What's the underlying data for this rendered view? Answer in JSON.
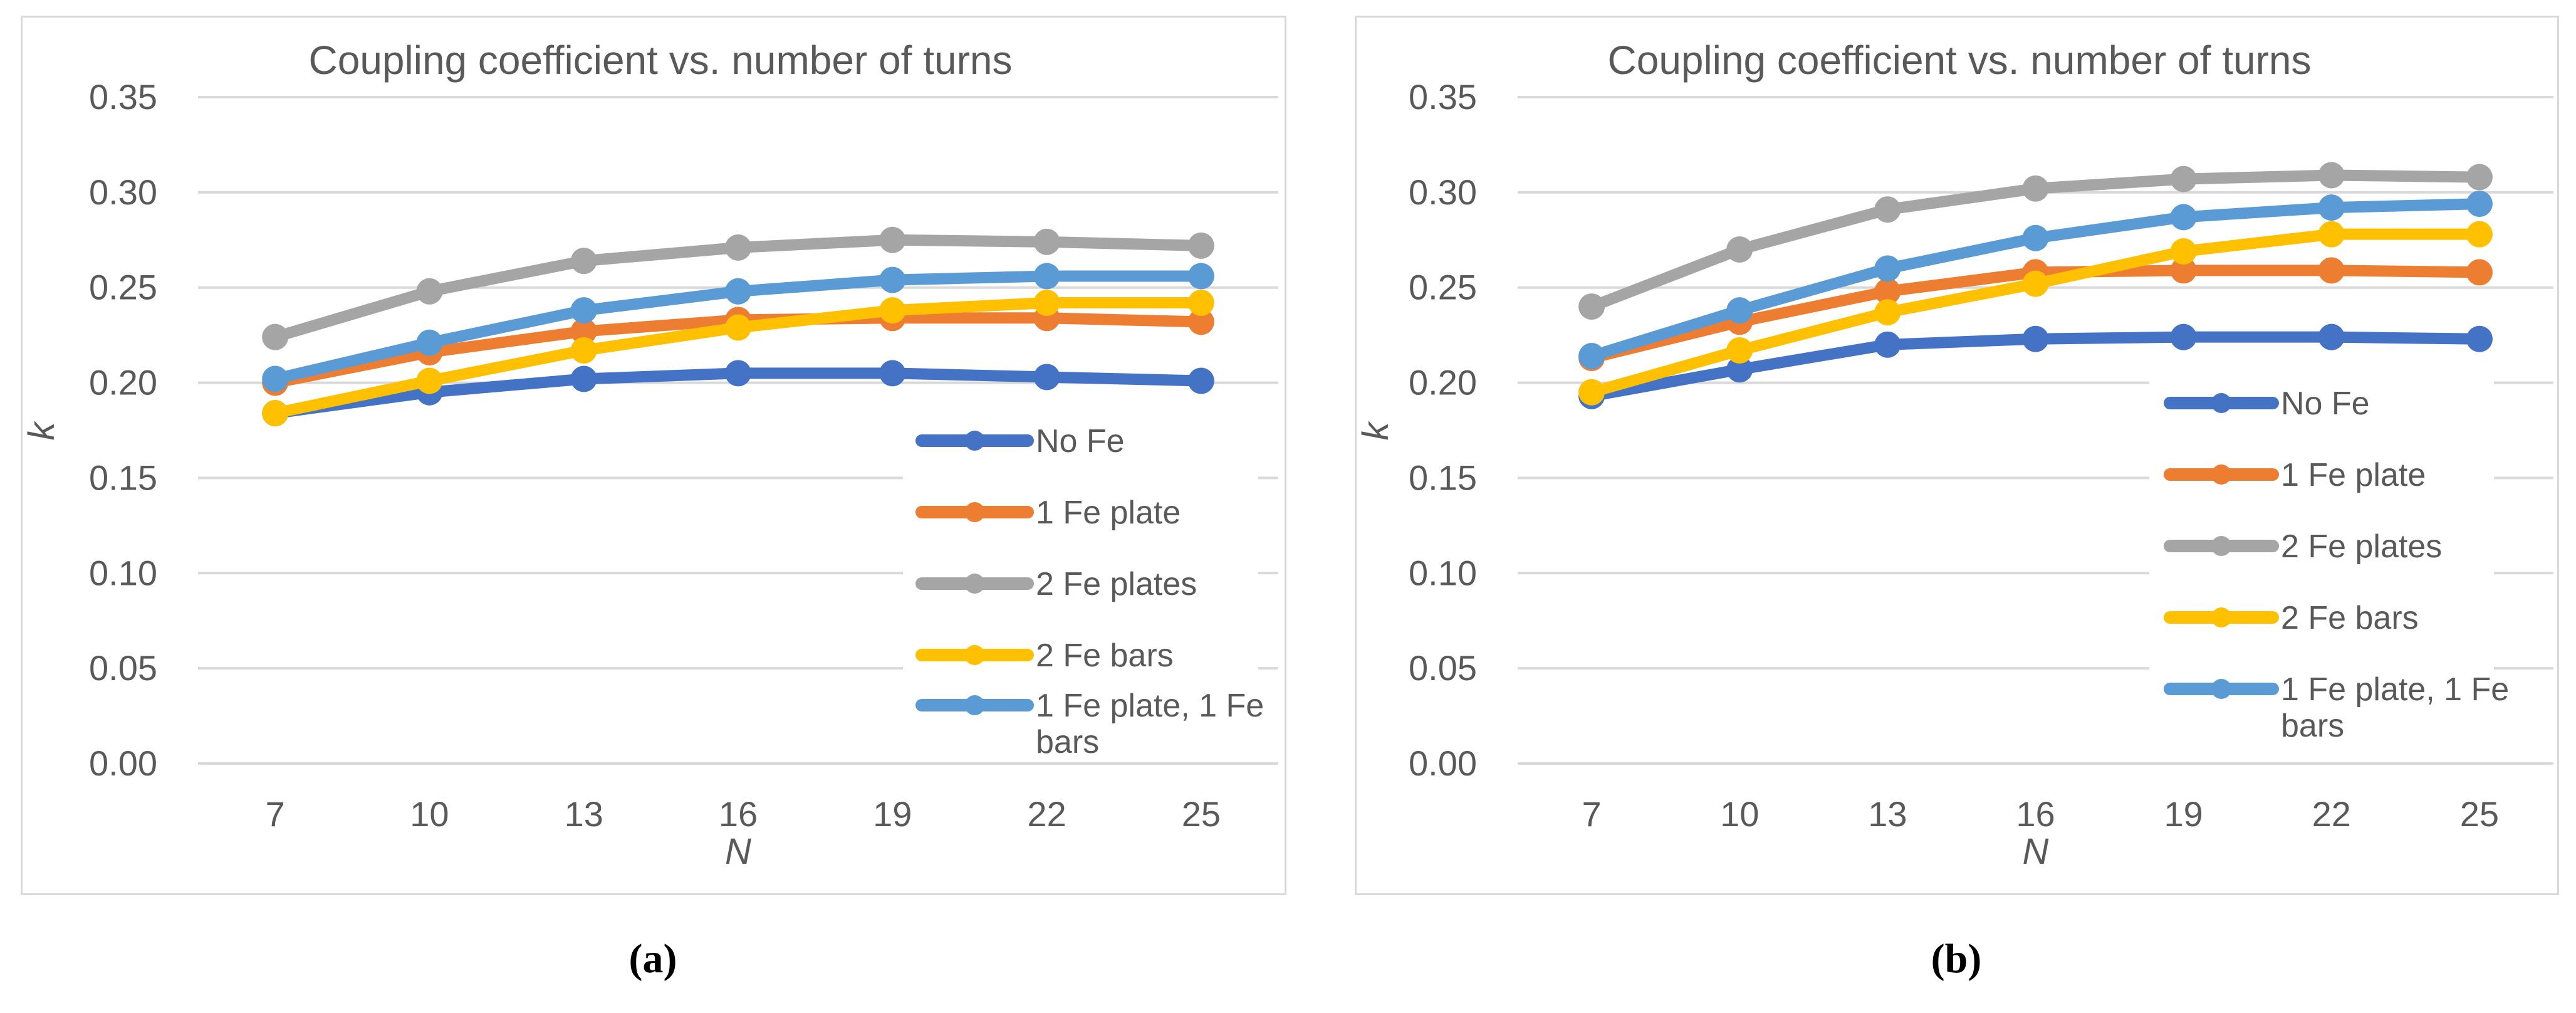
{
  "colors": {
    "background": "#FFFFFF",
    "panel_border": "#D9D9D9",
    "gridline": "#D9D9D9",
    "axis_text": "#595959",
    "caption_text": "#000000"
  },
  "chart_data": [
    {
      "type": "line",
      "title": "Coupling coefficient vs. number of turns",
      "xlabel": "N",
      "ylabel": "k",
      "caption": "(a)",
      "categories": [
        7,
        10,
        13,
        16,
        19,
        22,
        25
      ],
      "ylim": [
        0,
        0.35
      ],
      "ytick_step": 0.05,
      "ytick_labels": [
        "0.00",
        "0.05",
        "0.10",
        "0.15",
        "0.20",
        "0.25",
        "0.30",
        "0.35"
      ],
      "grid": true,
      "legend_position": "inside lower right",
      "series": [
        {
          "name": "No Fe",
          "color": "#4472C4",
          "values": [
            0.184,
            0.195,
            0.202,
            0.205,
            0.205,
            0.203,
            0.201
          ]
        },
        {
          "name": "1 Fe plate",
          "color": "#ED7D31",
          "values": [
            0.2,
            0.216,
            0.227,
            0.233,
            0.234,
            0.234,
            0.232
          ]
        },
        {
          "name": "2 Fe plates",
          "color": "#A5A5A5",
          "values": [
            0.224,
            0.248,
            0.264,
            0.271,
            0.275,
            0.274,
            0.272
          ]
        },
        {
          "name": "2 Fe bars",
          "color": "#FFC000",
          "values": [
            0.184,
            0.201,
            0.217,
            0.229,
            0.238,
            0.242,
            0.242
          ]
        },
        {
          "name": "1 Fe plate, 1 Fe bars",
          "color": "#5B9BD5",
          "values": [
            0.202,
            0.221,
            0.238,
            0.248,
            0.254,
            0.256,
            0.256
          ]
        }
      ]
    },
    {
      "type": "line",
      "title": "Coupling coefficient vs. number of turns",
      "xlabel": "N",
      "ylabel": "k",
      "caption": "(b)",
      "categories": [
        7,
        10,
        13,
        16,
        19,
        22,
        25
      ],
      "ylim": [
        0,
        0.35
      ],
      "ytick_step": 0.05,
      "ytick_labels": [
        "0.00",
        "0.05",
        "0.10",
        "0.15",
        "0.20",
        "0.25",
        "0.30",
        "0.35"
      ],
      "grid": true,
      "legend_position": "inside lower right",
      "series": [
        {
          "name": "No Fe",
          "color": "#4472C4",
          "values": [
            0.193,
            0.207,
            0.22,
            0.223,
            0.224,
            0.224,
            0.223
          ]
        },
        {
          "name": "1 Fe plate",
          "color": "#ED7D31",
          "values": [
            0.213,
            0.232,
            0.248,
            0.258,
            0.259,
            0.259,
            0.258
          ]
        },
        {
          "name": "2 Fe plates",
          "color": "#A5A5A5",
          "values": [
            0.24,
            0.27,
            0.291,
            0.302,
            0.307,
            0.309,
            0.308
          ]
        },
        {
          "name": "2 Fe bars",
          "color": "#FFC000",
          "values": [
            0.195,
            0.217,
            0.237,
            0.252,
            0.269,
            0.278,
            0.278
          ]
        },
        {
          "name": "1 Fe plate, 1 Fe bars",
          "color": "#5B9BD5",
          "values": [
            0.214,
            0.238,
            0.26,
            0.276,
            0.287,
            0.292,
            0.294
          ]
        }
      ]
    }
  ]
}
